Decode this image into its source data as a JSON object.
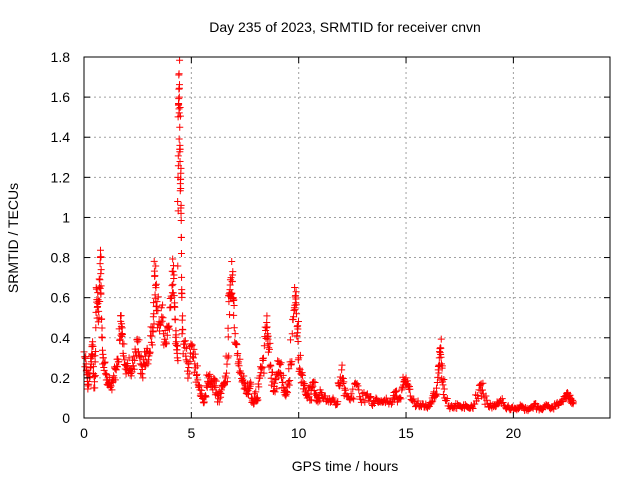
{
  "chart_data": {
    "type": "scatter",
    "title": "Day 235 of 2023, SRMTID for receiver cnvn",
    "xlabel": "GPS time / hours",
    "ylabel": "SRMTID / TECUs",
    "xlim": [
      0,
      24.5
    ],
    "ylim": [
      0,
      1.8
    ],
    "xticks": [
      0,
      5,
      10,
      15,
      20
    ],
    "xtick_labels": [
      "0",
      "5",
      "10",
      "15",
      "20"
    ],
    "yticks": [
      0,
      0.2,
      0.4,
      0.6,
      0.8,
      1,
      1.2,
      1.4,
      1.6,
      1.8
    ],
    "ytick_labels": [
      "0",
      "0.2",
      "0.4",
      "0.6",
      "0.8",
      "1",
      "1.2",
      "1.4",
      "1.6",
      "1.8"
    ],
    "grid": true,
    "marker": "+",
    "color": "#ff0000",
    "series": [
      {
        "name": "SRMTID",
        "points": [
          [
            0.0,
            0.33
          ],
          [
            0.1,
            0.27
          ],
          [
            0.15,
            0.2
          ],
          [
            0.2,
            0.16
          ],
          [
            0.3,
            0.25
          ],
          [
            0.35,
            0.31
          ],
          [
            0.4,
            0.38
          ],
          [
            0.45,
            0.22
          ],
          [
            0.5,
            0.15
          ],
          [
            0.55,
            0.45
          ],
          [
            0.6,
            0.59
          ],
          [
            0.65,
            0.57
          ],
          [
            0.7,
            0.5
          ],
          [
            0.75,
            0.77
          ],
          [
            0.78,
            0.72
          ],
          [
            0.8,
            0.74
          ],
          [
            0.85,
            0.4
          ],
          [
            0.9,
            0.3
          ],
          [
            1.0,
            0.22
          ],
          [
            1.1,
            0.19
          ],
          [
            1.2,
            0.17
          ],
          [
            1.3,
            0.14
          ],
          [
            1.4,
            0.2
          ],
          [
            1.5,
            0.24
          ],
          [
            1.6,
            0.28
          ],
          [
            1.7,
            0.51
          ],
          [
            1.75,
            0.47
          ],
          [
            1.8,
            0.37
          ],
          [
            1.9,
            0.29
          ],
          [
            2.0,
            0.24
          ],
          [
            2.1,
            0.3
          ],
          [
            2.2,
            0.21
          ],
          [
            2.3,
            0.26
          ],
          [
            2.4,
            0.33
          ],
          [
            2.5,
            0.38
          ],
          [
            2.6,
            0.3
          ],
          [
            2.7,
            0.22
          ],
          [
            2.8,
            0.27
          ],
          [
            2.9,
            0.33
          ],
          [
            3.0,
            0.29
          ],
          [
            3.1,
            0.41
          ],
          [
            3.2,
            0.45
          ],
          [
            3.25,
            0.52
          ],
          [
            3.3,
            0.71
          ],
          [
            3.35,
            0.65
          ],
          [
            3.4,
            0.58
          ],
          [
            3.5,
            0.48
          ],
          [
            3.6,
            0.55
          ],
          [
            3.7,
            0.42
          ],
          [
            3.8,
            0.37
          ],
          [
            3.9,
            0.45
          ],
          [
            4.0,
            0.55
          ],
          [
            4.1,
            0.66
          ],
          [
            4.15,
            0.73
          ],
          [
            4.2,
            0.61
          ],
          [
            4.25,
            0.49
          ],
          [
            4.3,
            0.38
          ],
          [
            4.35,
            0.3
          ],
          [
            4.38,
            1.2
          ],
          [
            4.4,
            1.56
          ],
          [
            4.42,
            1.64
          ],
          [
            4.44,
            1.6
          ],
          [
            4.46,
            1.45
          ],
          [
            4.48,
            1.34
          ],
          [
            4.5,
            1.19
          ],
          [
            4.52,
            1.02
          ],
          [
            4.54,
            0.82
          ],
          [
            4.56,
            0.62
          ],
          [
            4.6,
            0.44
          ],
          [
            4.7,
            0.35
          ],
          [
            4.8,
            0.28
          ],
          [
            4.9,
            0.22
          ],
          [
            5.0,
            0.36
          ],
          [
            5.1,
            0.3
          ],
          [
            5.2,
            0.25
          ],
          [
            5.3,
            0.19
          ],
          [
            5.4,
            0.14
          ],
          [
            5.5,
            0.11
          ],
          [
            5.6,
            0.08
          ],
          [
            5.7,
            0.16
          ],
          [
            5.8,
            0.21
          ],
          [
            5.9,
            0.18
          ],
          [
            6.0,
            0.14
          ],
          [
            6.1,
            0.19
          ],
          [
            6.2,
            0.12
          ],
          [
            6.3,
            0.08
          ],
          [
            6.4,
            0.14
          ],
          [
            6.5,
            0.17
          ],
          [
            6.6,
            0.2
          ],
          [
            6.7,
            0.3
          ],
          [
            6.75,
            0.58
          ],
          [
            6.8,
            0.64
          ],
          [
            6.85,
            0.7
          ],
          [
            6.9,
            0.68
          ],
          [
            6.95,
            0.6
          ],
          [
            7.0,
            0.45
          ],
          [
            7.1,
            0.37
          ],
          [
            7.2,
            0.28
          ],
          [
            7.3,
            0.22
          ],
          [
            7.4,
            0.19
          ],
          [
            7.5,
            0.15
          ],
          [
            7.6,
            0.12
          ],
          [
            7.7,
            0.17
          ],
          [
            7.8,
            0.1
          ],
          [
            7.9,
            0.07
          ],
          [
            8.0,
            0.13
          ],
          [
            8.1,
            0.09
          ],
          [
            8.2,
            0.21
          ],
          [
            8.3,
            0.25
          ],
          [
            8.4,
            0.36
          ],
          [
            8.5,
            0.45
          ],
          [
            8.55,
            0.42
          ],
          [
            8.6,
            0.35
          ],
          [
            8.7,
            0.26
          ],
          [
            8.8,
            0.18
          ],
          [
            8.9,
            0.13
          ],
          [
            9.0,
            0.22
          ],
          [
            9.1,
            0.27
          ],
          [
            9.2,
            0.2
          ],
          [
            9.3,
            0.15
          ],
          [
            9.4,
            0.11
          ],
          [
            9.5,
            0.17
          ],
          [
            9.6,
            0.28
          ],
          [
            9.7,
            0.42
          ],
          [
            9.8,
            0.55
          ],
          [
            9.85,
            0.61
          ],
          [
            9.9,
            0.52
          ],
          [
            9.95,
            0.46
          ],
          [
            10.0,
            0.3
          ],
          [
            10.1,
            0.22
          ],
          [
            10.2,
            0.18
          ],
          [
            10.3,
            0.13
          ],
          [
            10.4,
            0.1
          ],
          [
            10.5,
            0.15
          ],
          [
            10.6,
            0.09
          ],
          [
            10.7,
            0.18
          ],
          [
            10.8,
            0.12
          ],
          [
            10.9,
            0.08
          ],
          [
            11.0,
            0.14
          ],
          [
            11.2,
            0.11
          ],
          [
            11.4,
            0.08
          ],
          [
            11.6,
            0.1
          ],
          [
            11.8,
            0.07
          ],
          [
            11.9,
            0.16
          ],
          [
            12.0,
            0.24
          ],
          [
            12.1,
            0.18
          ],
          [
            12.2,
            0.12
          ],
          [
            12.4,
            0.09
          ],
          [
            12.6,
            0.17
          ],
          [
            12.8,
            0.14
          ],
          [
            13.0,
            0.09
          ],
          [
            13.2,
            0.12
          ],
          [
            13.4,
            0.07
          ],
          [
            13.6,
            0.1
          ],
          [
            13.8,
            0.08
          ],
          [
            14.0,
            0.09
          ],
          [
            14.2,
            0.07
          ],
          [
            14.4,
            0.1
          ],
          [
            14.5,
            0.13
          ],
          [
            14.6,
            0.08
          ],
          [
            14.8,
            0.14
          ],
          [
            14.9,
            0.18
          ],
          [
            15.0,
            0.2
          ],
          [
            15.1,
            0.16
          ],
          [
            15.2,
            0.11
          ],
          [
            15.4,
            0.08
          ],
          [
            15.6,
            0.06
          ],
          [
            15.8,
            0.07
          ],
          [
            16.0,
            0.05
          ],
          [
            16.2,
            0.08
          ],
          [
            16.3,
            0.13
          ],
          [
            16.4,
            0.11
          ],
          [
            16.5,
            0.24
          ],
          [
            16.55,
            0.3
          ],
          [
            16.6,
            0.35
          ],
          [
            16.65,
            0.27
          ],
          [
            16.7,
            0.18
          ],
          [
            16.8,
            0.1
          ],
          [
            17.0,
            0.06
          ],
          [
            17.2,
            0.05
          ],
          [
            17.4,
            0.07
          ],
          [
            17.6,
            0.05
          ],
          [
            17.8,
            0.06
          ],
          [
            18.0,
            0.05
          ],
          [
            18.2,
            0.07
          ],
          [
            18.4,
            0.14
          ],
          [
            18.5,
            0.17
          ],
          [
            18.6,
            0.12
          ],
          [
            18.8,
            0.07
          ],
          [
            19.0,
            0.05
          ],
          [
            19.2,
            0.06
          ],
          [
            19.4,
            0.09
          ],
          [
            19.6,
            0.06
          ],
          [
            19.8,
            0.05
          ],
          [
            20.0,
            0.04
          ],
          [
            20.2,
            0.05
          ],
          [
            20.4,
            0.06
          ],
          [
            20.6,
            0.04
          ],
          [
            20.8,
            0.05
          ],
          [
            21.0,
            0.07
          ],
          [
            21.2,
            0.04
          ],
          [
            21.4,
            0.05
          ],
          [
            21.6,
            0.06
          ],
          [
            21.8,
            0.05
          ],
          [
            22.0,
            0.07
          ],
          [
            22.2,
            0.08
          ],
          [
            22.4,
            0.1
          ],
          [
            22.5,
            0.12
          ],
          [
            22.6,
            0.11
          ],
          [
            22.7,
            0.09
          ],
          [
            22.8,
            0.08
          ]
        ]
      }
    ]
  }
}
